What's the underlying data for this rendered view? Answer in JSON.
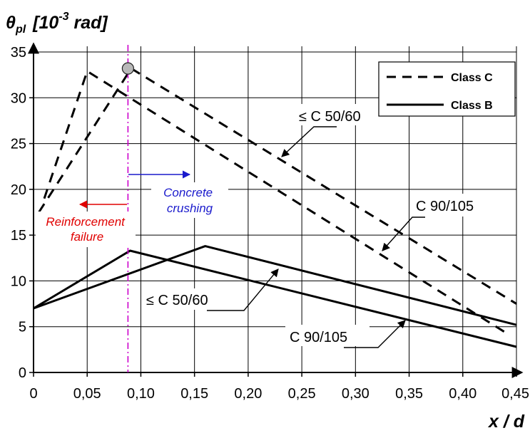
{
  "chart_data": {
    "type": "line",
    "ylabel_prefix": "θ",
    "ylabel_sub": "pl",
    "ylabel_unit_open": "[10",
    "ylabel_exp": "-3",
    "ylabel_unit_close": " rad]",
    "xlabel": "x / d",
    "xlim": [
      0,
      0.45
    ],
    "ylim": [
      0,
      35
    ],
    "x_ticks": [
      0,
      0.05,
      0.1,
      0.15,
      0.2,
      0.25,
      0.3,
      0.35,
      0.4,
      0.45
    ],
    "x_tick_labels": [
      "0",
      "0,05",
      "0,10",
      "0,15",
      "0,20",
      "0,25",
      "0,30",
      "0,35",
      "0,40",
      "0,45"
    ],
    "y_ticks": [
      0,
      5,
      10,
      15,
      20,
      25,
      30,
      35
    ],
    "y_tick_labels": [
      "0",
      "5",
      "10",
      "15",
      "20",
      "25",
      "30",
      "35"
    ],
    "grid": true,
    "legend_placement": "top-right",
    "legend": [
      {
        "label": "Class C",
        "style": "dashed"
      },
      {
        "label": "Class B",
        "style": "solid"
      }
    ],
    "series": [
      {
        "style": "dashed",
        "x": [
          0.005,
          0.091,
          0.45
        ],
        "y": [
          17.5,
          33.2,
          7.5
        ]
      },
      {
        "style": "dashed",
        "x": [
          0.01,
          0.05,
          0.442
        ],
        "y": [
          19.0,
          32.9,
          4.2
        ]
      },
      {
        "style": "solid",
        "x": [
          0,
          0.16,
          0.45
        ],
        "y": [
          7.0,
          13.8,
          5.2
        ]
      },
      {
        "style": "solid",
        "x": [
          0,
          0.09,
          0.45
        ],
        "y": [
          7.0,
          13.3,
          2.8
        ]
      }
    ],
    "annotations": {
      "dashed_upper": "≤ C 50/60",
      "dashed_lower": "C 90/105",
      "solid_upper": "≤ C 50/60",
      "solid_lower": "C 90/105",
      "reinforcement": [
        "Reinforcement",
        "failure"
      ],
      "concrete": [
        "Concrete",
        "crushing"
      ]
    },
    "divider_x": 0.088,
    "marker_point": {
      "x": 0.088,
      "y": 33.2
    },
    "colors": {
      "reinforcement": "#e00000",
      "concrete": "#1a1acc",
      "divider": "#cc00cc"
    }
  }
}
